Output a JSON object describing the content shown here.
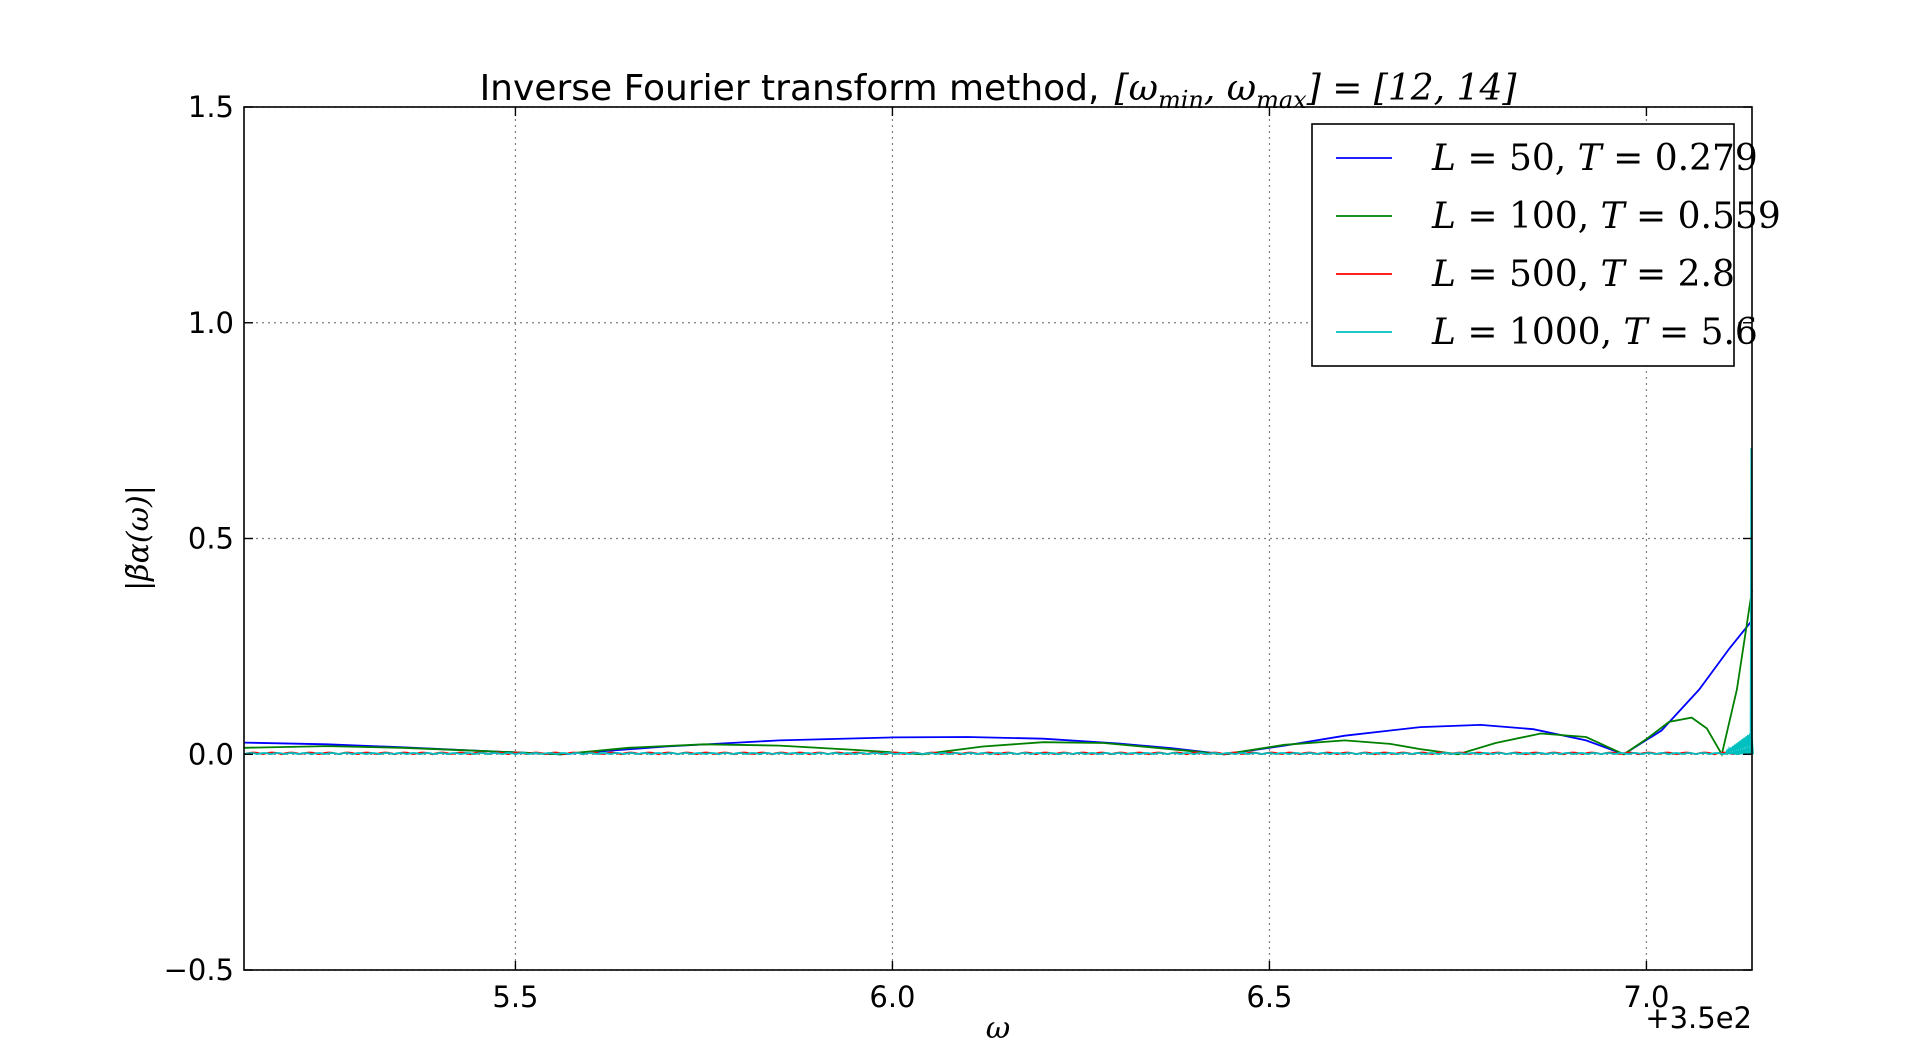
{
  "chart_data": {
    "type": "line",
    "title": "Inverse Fourier transform method, [ω_min, ω_max] = [12, 14]",
    "title_parts": {
      "text": "Inverse Fourier transform method,",
      "math": "[ωmin, ωmax] = [12, 14]",
      "w1": "ω",
      "sub1": "min",
      "w2": "ω",
      "sub2": "max",
      "rhs": "] = [12, 14]"
    },
    "xlabel": "ω",
    "ylabel": "|β̃α(ω)|",
    "x_offset_label": "+3.5e2",
    "x_offset": 350,
    "xlim": [
      5.14,
      7.14
    ],
    "ylim": [
      -0.5,
      1.5
    ],
    "xticks": [
      5.5,
      6.0,
      6.5,
      7.0
    ],
    "xtick_labels": [
      "5.5",
      "6.0",
      "6.5",
      "7.0"
    ],
    "yticks": [
      -0.5,
      0.0,
      0.5,
      1.0,
      1.5
    ],
    "ytick_labels": [
      "−0.5",
      "0.0",
      "0.5",
      "1.0",
      "1.5"
    ],
    "grid": true,
    "legend_position": "top-right",
    "series": [
      {
        "name": "L = 50, T = 0.279",
        "color": "#0000ff",
        "x": [
          5.14,
          5.25,
          5.35,
          5.45,
          5.56,
          5.7,
          5.85,
          6.0,
          6.1,
          6.2,
          6.3,
          6.37,
          6.44,
          6.52,
          6.6,
          6.7,
          6.78,
          6.85,
          6.92,
          6.97,
          7.02,
          7.07,
          7.11,
          7.14
        ],
        "values": [
          0.027,
          0.023,
          0.016,
          0.008,
          0.0,
          0.018,
          0.032,
          0.039,
          0.04,
          0.036,
          0.025,
          0.014,
          0.0,
          0.02,
          0.043,
          0.063,
          0.068,
          0.058,
          0.032,
          0.0,
          0.055,
          0.15,
          0.245,
          0.31
        ]
      },
      {
        "name": "L = 100, T = 0.559",
        "color": "#008000",
        "x": [
          5.14,
          5.25,
          5.35,
          5.45,
          5.56,
          5.65,
          5.75,
          5.85,
          5.95,
          6.04,
          6.12,
          6.2,
          6.28,
          6.35,
          6.44,
          6.52,
          6.6,
          6.66,
          6.7,
          6.75,
          6.8,
          6.86,
          6.92,
          6.97,
          7.0,
          7.03,
          7.06,
          7.08,
          7.1,
          7.12,
          7.14
        ],
        "values": [
          0.015,
          0.019,
          0.015,
          0.008,
          0.0,
          0.015,
          0.023,
          0.02,
          0.01,
          0.0,
          0.018,
          0.028,
          0.026,
          0.015,
          0.0,
          0.022,
          0.032,
          0.024,
          0.012,
          0.0,
          0.026,
          0.048,
          0.04,
          0.0,
          0.035,
          0.075,
          0.085,
          0.06,
          0.0,
          0.15,
          0.38
        ]
      },
      {
        "name": "L = 500, T = 2.8",
        "color": "#ff0000",
        "x": [
          5.14,
          7.14
        ],
        "values": [
          0.0,
          0.0
        ]
      },
      {
        "name": "L = 1000, T = 5.6",
        "color": "#00bfbf",
        "x": [
          5.14,
          7.14
        ],
        "values": [
          0.0,
          0.0
        ]
      }
    ],
    "legend": {
      "entries": [
        {
          "L": "L",
          "Lval": "50",
          "T": "T",
          "Tval": "0.279",
          "color": "#0000ff"
        },
        {
          "L": "L",
          "Lval": "100",
          "T": "T",
          "Tval": "0.559",
          "color": "#008000"
        },
        {
          "L": "L",
          "Lval": "500",
          "T": "T",
          "Tval": "2.8",
          "color": "#ff0000"
        },
        {
          "L": "L",
          "Lval": "1000",
          "T": "T",
          "Tval": "5.6",
          "color": "#00bfbf"
        }
      ]
    }
  }
}
